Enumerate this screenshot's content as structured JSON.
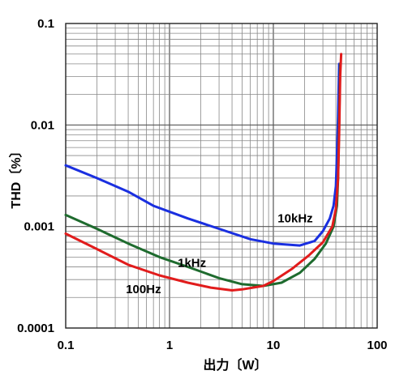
{
  "chart_data": {
    "type": "line",
    "xlabel": "出力〔W〕",
    "ylabel": "THD〔%〕",
    "xscale": "log",
    "yscale": "log",
    "xlim": [
      0.1,
      100
    ],
    "ylim": [
      0.0001,
      0.1
    ],
    "grid": true,
    "x_ticks": [
      "0.1",
      "1",
      "10",
      "100"
    ],
    "y_ticks": [
      "0.1",
      "0.01",
      "0.001",
      "0.0001"
    ],
    "series": [
      {
        "name": "10kHz",
        "color": "#1a2fe0",
        "points": [
          [
            0.1,
            0.004
          ],
          [
            0.2,
            0.003
          ],
          [
            0.4,
            0.0022
          ],
          [
            0.7,
            0.0016
          ],
          [
            1.5,
            0.0012
          ],
          [
            3,
            0.00095
          ],
          [
            6,
            0.00075
          ],
          [
            10,
            0.00068
          ],
          [
            18,
            0.00065
          ],
          [
            25,
            0.00072
          ],
          [
            30,
            0.0009
          ],
          [
            35,
            0.0012
          ],
          [
            38,
            0.0016
          ],
          [
            40,
            0.0025
          ],
          [
            41,
            0.005
          ],
          [
            42,
            0.012
          ],
          [
            43,
            0.04
          ]
        ]
      },
      {
        "name": "1kHz",
        "color": "#1e6b2e",
        "points": [
          [
            0.1,
            0.0013
          ],
          [
            0.2,
            0.00095
          ],
          [
            0.4,
            0.00068
          ],
          [
            0.8,
            0.0005
          ],
          [
            1.5,
            0.0004
          ],
          [
            3,
            0.00031
          ],
          [
            5,
            0.00027
          ],
          [
            8,
            0.00026
          ],
          [
            12,
            0.00028
          ],
          [
            18,
            0.00035
          ],
          [
            25,
            0.00048
          ],
          [
            32,
            0.00068
          ],
          [
            38,
            0.001
          ],
          [
            41,
            0.0016
          ],
          [
            42,
            0.003
          ],
          [
            43,
            0.01
          ],
          [
            44,
            0.04
          ]
        ]
      },
      {
        "name": "100Hz",
        "color": "#e11c1c",
        "points": [
          [
            0.1,
            0.00085
          ],
          [
            0.2,
            0.0006
          ],
          [
            0.4,
            0.00042
          ],
          [
            0.8,
            0.00033
          ],
          [
            1.5,
            0.00028
          ],
          [
            2.5,
            0.00025
          ],
          [
            4,
            0.000235
          ],
          [
            5,
            0.00024
          ],
          [
            8,
            0.00026
          ],
          [
            10,
            0.00029
          ],
          [
            15,
            0.00038
          ],
          [
            22,
            0.00052
          ],
          [
            30,
            0.0007
          ],
          [
            37,
            0.001
          ],
          [
            40,
            0.0015
          ],
          [
            42,
            0.003
          ],
          [
            43,
            0.008
          ],
          [
            44,
            0.03
          ],
          [
            45,
            0.05
          ]
        ]
      }
    ],
    "annotations": [
      {
        "text": "10kHz",
        "x": 11,
        "y": 0.0011
      },
      {
        "text": "1kHz",
        "x": 1.2,
        "y": 0.0004
      },
      {
        "text": "100Hz",
        "x": 0.38,
        "y": 0.00022
      }
    ]
  }
}
